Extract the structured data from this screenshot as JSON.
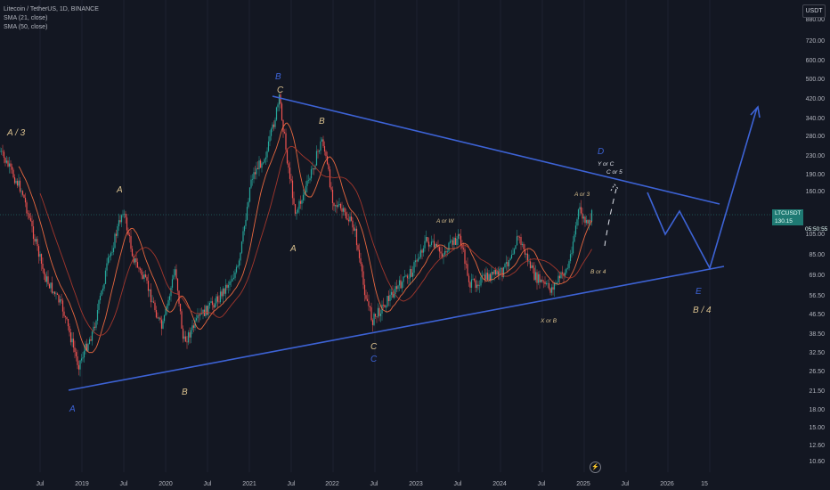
{
  "header": {
    "symbol_title": "Litecoin / TetherUS, 1D, BINANCE",
    "indicator_1": "SMA (21, close)",
    "indicator_2": "SMA (50, close)"
  },
  "price_axis": {
    "currency": "USDT",
    "labels": [
      "880.00",
      "720.00",
      "600.00",
      "500.00",
      "420.00",
      "340.00",
      "280.00",
      "230.00",
      "190.00",
      "160.00",
      "105.00",
      "85.00",
      "69.00",
      "56.50",
      "46.50",
      "38.50",
      "32.50",
      "26.50",
      "21.50",
      "18.00",
      "15.00",
      "12.60",
      "10.60"
    ],
    "current_price": {
      "symbol": "LTCUSDT",
      "value": "130.15",
      "countdown": "05:50:55"
    }
  },
  "time_axis": {
    "labels": [
      "Jul",
      "2019",
      "Jul",
      "2020",
      "Jul",
      "2021",
      "Jul",
      "2022",
      "Jul",
      "2023",
      "Jul",
      "2024",
      "Jul",
      "2025",
      "Jul",
      "2026",
      "15"
    ]
  },
  "annotations": {
    "a3": "A / 3",
    "a_2019": "A",
    "a_low": "A",
    "b_2020": "B",
    "b_top": "B",
    "c_top": "C",
    "b_2021": "B",
    "a_2021": "A",
    "c_2022": "C",
    "c_2022_blue": "C",
    "a_or_w": "A or W",
    "x_or_b": "X or B",
    "a_or_3": "A or 3",
    "b_or_4": "B or 4",
    "y_or_c": "Y or C",
    "c_or_5": "C or 5",
    "d": "D",
    "e": "E",
    "b4": "B / 4"
  },
  "colors": {
    "background": "#131722",
    "trendline": "#3d63d6",
    "label_gold": "#d9c08e",
    "label_blue": "#3d63d6",
    "candle_up": "#26a69a",
    "candle_down": "#ef5350",
    "sma21": "#ff7043",
    "sma50": "#c0392b"
  },
  "icons": {
    "bolt": "lightning-icon"
  }
}
